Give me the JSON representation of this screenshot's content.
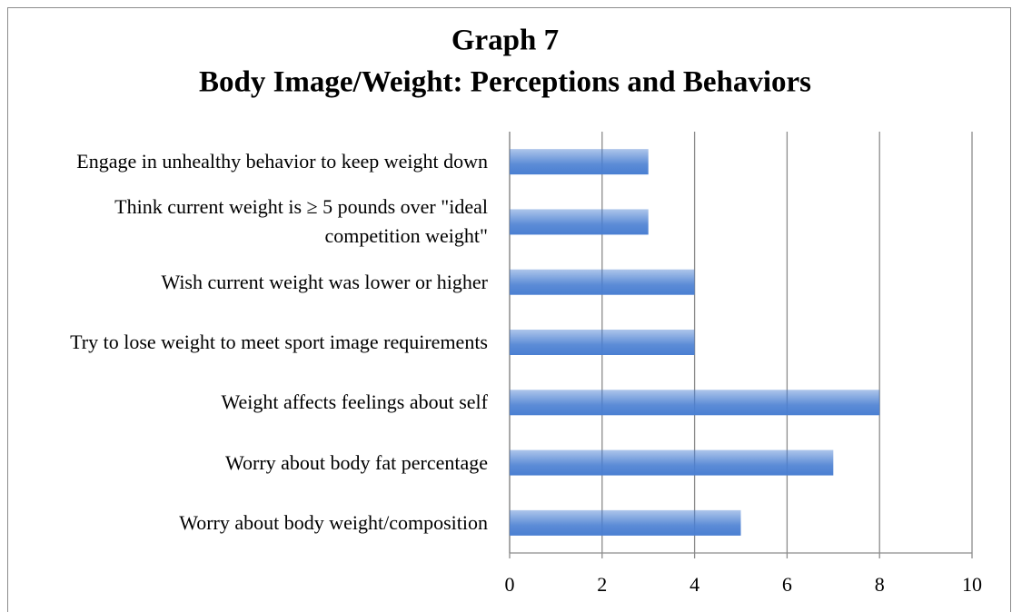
{
  "chart_data": {
    "type": "bar",
    "orientation": "horizontal",
    "title": [
      "Graph 7",
      "Body Image/Weight: Perceptions and Behaviors"
    ],
    "categories": [
      "Engage in unhealthy behavior to keep weight down",
      "Think current weight is ≥ 5 pounds over \"ideal competition weight\"",
      "Wish current weight was lower or higher",
      "Try to lose weight to meet sport image requirements",
      "Weight affects feelings about self",
      "Worry about body fat percentage",
      "Worry about body weight/composition"
    ],
    "values": [
      3,
      3,
      4,
      4,
      8,
      7,
      5
    ],
    "color": "#4a7fd2",
    "xlim": [
      0,
      10
    ],
    "xticks": [
      0,
      2,
      4,
      6,
      8,
      10
    ],
    "grid": true
  }
}
